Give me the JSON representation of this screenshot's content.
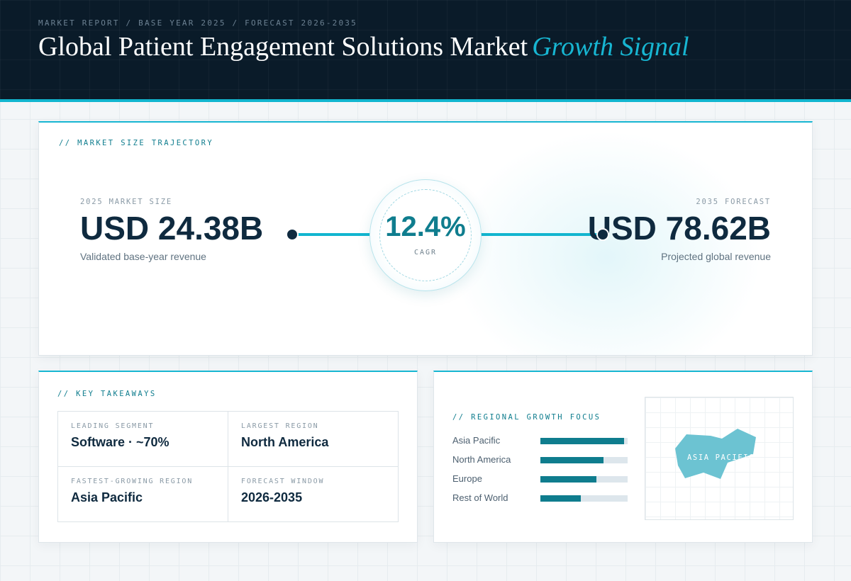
{
  "header": {
    "eyebrow": "MARKET REPORT / BASE YEAR 2025 / FORECAST 2026-2035",
    "title_main": "Global Patient Engagement Solutions Market",
    "title_accent": "Growth Signal"
  },
  "trajectory": {
    "section_label": "// MARKET SIZE TRAJECTORY",
    "base": {
      "caption": "2025 MARKET SIZE",
      "value": "USD 24.38B",
      "subtitle": "Validated base-year revenue"
    },
    "forecast": {
      "caption": "2035 FORECAST",
      "value": "USD 78.62B",
      "subtitle": "Projected global revenue"
    },
    "cagr": {
      "value": "12.4%",
      "label": "CAGR"
    }
  },
  "takeaways": {
    "section_label": "// KEY TAKEAWAYS",
    "items": [
      {
        "caption": "LEADING SEGMENT",
        "value": "Software · ~70%"
      },
      {
        "caption": "LARGEST REGION",
        "value": "North America"
      },
      {
        "caption": "FASTEST-GROWING REGION",
        "value": "Asia Pacific"
      },
      {
        "caption": "FORECAST WINDOW",
        "value": "2026-2035"
      }
    ]
  },
  "regional": {
    "section_label": "// REGIONAL GROWTH FOCUS",
    "bars": [
      {
        "label": "Asia Pacific",
        "level": 0.96
      },
      {
        "label": "North America",
        "level": 0.72
      },
      {
        "label": "Europe",
        "level": 0.64
      },
      {
        "label": "Rest of World",
        "level": 0.46
      }
    ],
    "map_label": "ASIA PACIFIC"
  },
  "colors": {
    "header_bg": "#0a1b29",
    "accent_cyan": "#17b6d2",
    "accent_teal": "#0f7d8e",
    "text_dark": "#0f2a3f"
  }
}
